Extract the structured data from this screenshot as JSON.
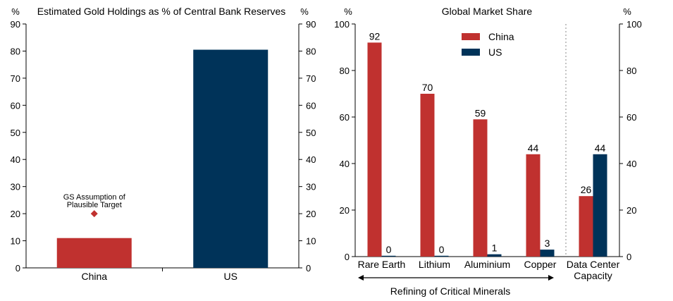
{
  "chart_data": [
    {
      "type": "bar",
      "title": "Estimated Gold Holdings as % of Central Bank Reserves",
      "ylabel_left": "%",
      "ylabel_right": "%",
      "ylim": [
        0,
        90
      ],
      "yticks": [
        "0",
        "10",
        "20",
        "30",
        "40",
        "50",
        "60",
        "70",
        "80",
        "90"
      ],
      "categories": [
        "China",
        "US"
      ],
      "values": [
        11,
        80.5
      ],
      "colors": [
        "#c0312f",
        "#003359"
      ],
      "marker": {
        "category": "China",
        "value": 20,
        "label_line1": "GS Assumption of",
        "label_line2": "Plausible Target",
        "color": "#c0312f"
      },
      "grid": false
    },
    {
      "type": "bar",
      "title": "Global Market Share",
      "ylabel_left": "%",
      "ylabel_right": "%",
      "ylim": [
        0,
        100
      ],
      "yticks": [
        "0",
        "20",
        "40",
        "60",
        "80",
        "100"
      ],
      "categories": [
        {
          "line1": "Rare Earth",
          "line2": ""
        },
        {
          "line1": "Lithium",
          "line2": ""
        },
        {
          "line1": "Aluminium",
          "line2": ""
        },
        {
          "line1": "Copper",
          "line2": ""
        },
        {
          "line1": "Data Center",
          "line2": "Capacity"
        }
      ],
      "series": [
        {
          "name": "China",
          "color": "#c0312f",
          "values": [
            92,
            70,
            59,
            44,
            26
          ]
        },
        {
          "name": "US",
          "color": "#003359",
          "values": [
            0,
            0,
            1,
            3,
            44
          ]
        }
      ],
      "data_labels": [
        [
          "92",
          "0"
        ],
        [
          "70",
          "0"
        ],
        [
          "59",
          "1"
        ],
        [
          "44",
          "3"
        ],
        [
          "26",
          "44"
        ]
      ],
      "group_label": "Refining of Critical Minerals",
      "legend_position": "top-center",
      "grid": false
    }
  ]
}
